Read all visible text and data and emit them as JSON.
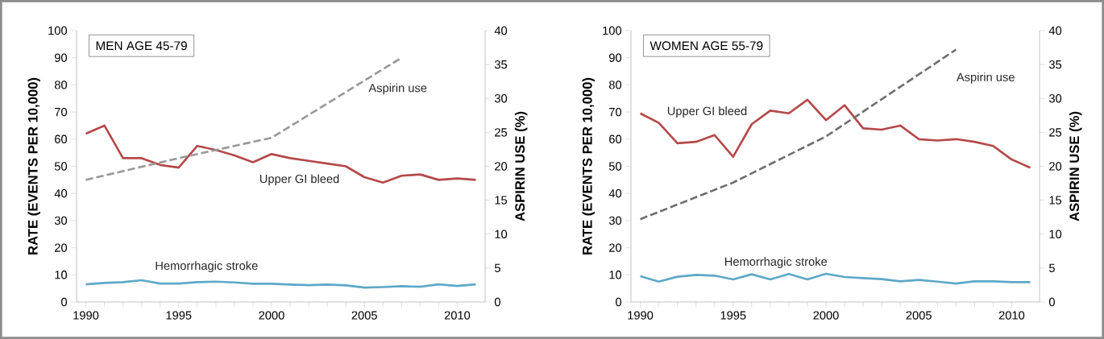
{
  "chart_data": [
    {
      "type": "line",
      "title": "MEN AGE 45-79",
      "ylabel": "RATE (EVENTS PER 10,000)",
      "y2label": "ASPIRIN USE (%)",
      "x": [
        1990,
        1991,
        1992,
        1993,
        1994,
        1995,
        1996,
        1997,
        1998,
        1999,
        2000,
        2001,
        2002,
        2003,
        2004,
        2005,
        2006,
        2007,
        2008,
        2009,
        2010,
        2011
      ],
      "xlim": [
        1989.5,
        2011.5
      ],
      "xticks": [
        1990,
        1995,
        2000,
        2005,
        2010
      ],
      "ylim": [
        0,
        100
      ],
      "yticks": [
        0,
        10,
        20,
        30,
        40,
        50,
        60,
        70,
        80,
        90,
        100
      ],
      "y2lim": [
        0,
        40
      ],
      "y2ticks": [
        0,
        5,
        10,
        15,
        20,
        25,
        30,
        35,
        40
      ],
      "grid": false,
      "legend": false,
      "series": [
        {
          "name": "Upper GI bleed",
          "color": "#b5494a",
          "values": [
            62,
            65,
            53,
            53,
            50.5,
            49.5,
            57.5,
            56,
            54,
            51.5,
            54.5,
            53,
            52,
            51,
            50,
            46,
            44,
            46.5,
            47,
            45,
            45.5,
            45
          ]
        },
        {
          "name": "Hemorrhagic stroke",
          "color": "#5ea8c8",
          "values": [
            6.5,
            7,
            7.3,
            8,
            6.8,
            6.8,
            7.3,
            7.5,
            7.2,
            6.7,
            6.7,
            6.4,
            6.2,
            6.4,
            6.1,
            5.3,
            5.5,
            5.8,
            5.6,
            6.5,
            5.9,
            6.5
          ]
        },
        {
          "name": "Aspirin use",
          "color": "#999999",
          "axis": "y2",
          "line_style": "dashed",
          "x": [
            1990,
            1995,
            2000,
            2007
          ],
          "values": [
            18,
            21.2,
            24.2,
            36
          ]
        }
      ]
    },
    {
      "type": "line",
      "title": "WOMEN AGE 55-79",
      "ylabel": "RATE (EVENTS PER 10,000)",
      "y2label": "ASPIRIN USE (%)",
      "x": [
        1990,
        1991,
        1992,
        1993,
        1994,
        1995,
        1996,
        1997,
        1998,
        1999,
        2000,
        2001,
        2002,
        2003,
        2004,
        2005,
        2006,
        2007,
        2008,
        2009,
        2010,
        2011
      ],
      "xlim": [
        1989.5,
        2011.5
      ],
      "xticks": [
        1990,
        1995,
        2000,
        2005,
        2010
      ],
      "ylim": [
        0,
        100
      ],
      "yticks": [
        0,
        10,
        20,
        30,
        40,
        50,
        60,
        70,
        80,
        90,
        100
      ],
      "y2lim": [
        0,
        40
      ],
      "y2ticks": [
        0,
        5,
        10,
        15,
        20,
        25,
        30,
        35,
        40
      ],
      "grid": false,
      "legend": false,
      "series": [
        {
          "name": "Upper GI bleed",
          "color": "#b5494a",
          "values": [
            69.5,
            66,
            58.5,
            59,
            61.5,
            53.5,
            65.5,
            70.5,
            69.5,
            74.5,
            67,
            72.5,
            64,
            63.5,
            65,
            60,
            59.5,
            60,
            59,
            57.5,
            52.5,
            49.5
          ]
        },
        {
          "name": "Hemorrhagic stroke",
          "color": "#5ea8c8",
          "values": [
            9.5,
            7.5,
            9.3,
            10,
            9.7,
            8.3,
            10.2,
            8.3,
            10.3,
            8.3,
            10.4,
            9.2,
            8.8,
            8.4,
            7.6,
            8.1,
            7.5,
            6.8,
            7.6,
            7.6,
            7.3,
            7.3
          ]
        },
        {
          "name": "Aspirin use",
          "color": "#707070",
          "axis": "y2",
          "line_style": "dashed",
          "x": [
            1990,
            1995,
            2000,
            2007
          ],
          "values": [
            12.2,
            17.6,
            24.4,
            37.2
          ]
        }
      ]
    }
  ]
}
